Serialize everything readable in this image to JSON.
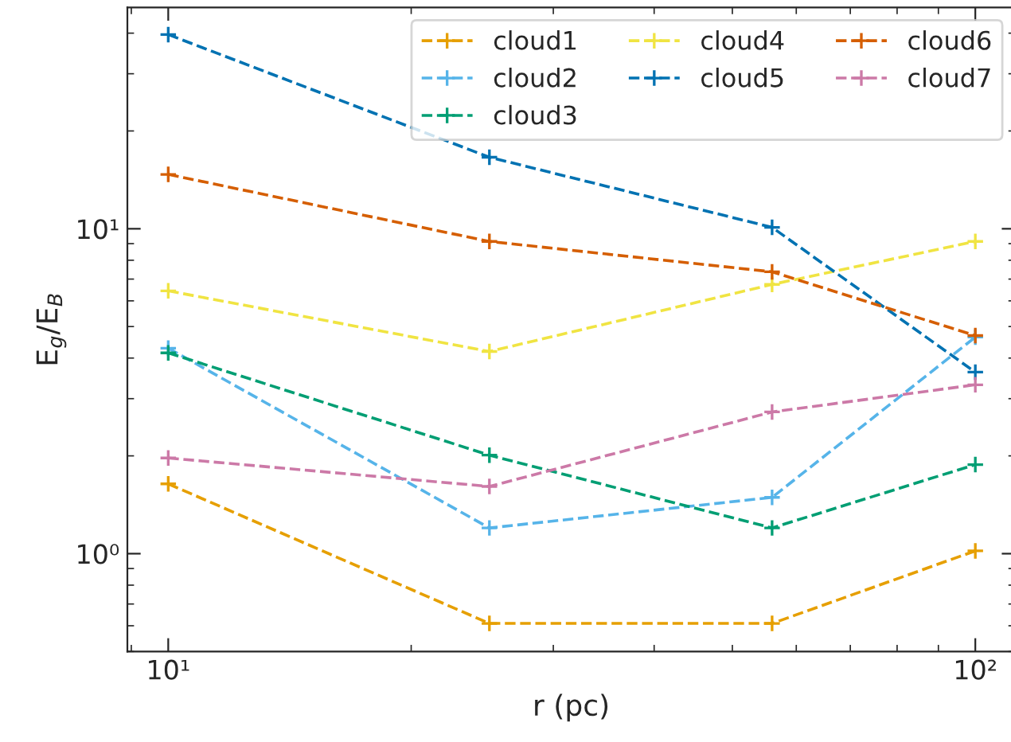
{
  "chart_data": {
    "type": "line",
    "xlabel": "r (pc)",
    "ylabel": "E$_{g}$/E$_{B}$",
    "log": "xy",
    "x": [
      10,
      25,
      56,
      100
    ],
    "series": [
      {
        "name": "cloud1",
        "color": "#e69f00",
        "values": [
          1.64,
          0.61,
          0.61,
          1.02
        ]
      },
      {
        "name": "cloud2",
        "color": "#56b4e9",
        "values": [
          4.29,
          1.2,
          1.49,
          4.64
        ]
      },
      {
        "name": "cloud3",
        "color": "#009e73",
        "values": [
          4.15,
          2.01,
          1.2,
          1.88
        ]
      },
      {
        "name": "cloud4",
        "color": "#f0e442",
        "values": [
          6.44,
          4.19,
          6.74,
          9.14
        ]
      },
      {
        "name": "cloud5",
        "color": "#0072b2",
        "values": [
          39.6,
          16.6,
          10.1,
          3.62
        ]
      },
      {
        "name": "cloud6",
        "color": "#d55e00",
        "values": [
          14.7,
          9.14,
          7.37,
          4.69
        ]
      },
      {
        "name": "cloud7",
        "color": "#cc79a7",
        "values": [
          1.97,
          1.61,
          2.73,
          3.31
        ]
      }
    ],
    "xlim": [
      8.9,
      112
    ],
    "ylim": [
      0.5,
      48
    ],
    "xticks": [
      {
        "value": 10,
        "label": "10¹"
      },
      {
        "value": 100,
        "label": "10²"
      }
    ],
    "yticks": [
      {
        "value": 1,
        "label": "10⁰"
      },
      {
        "value": 10,
        "label": "10¹"
      }
    ],
    "marker": "cross",
    "line_style": "dashed",
    "legend": "top right",
    "grid": false
  }
}
